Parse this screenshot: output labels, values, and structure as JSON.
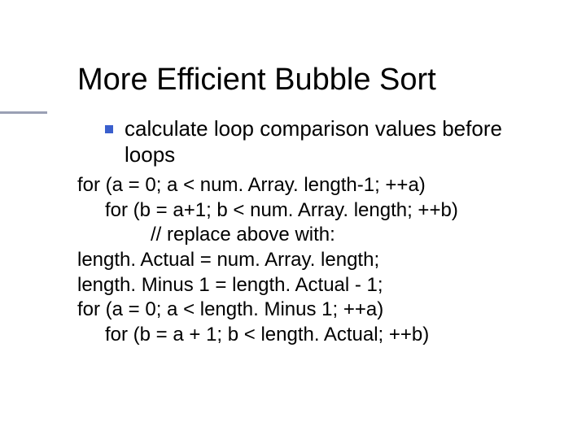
{
  "slide": {
    "title": "More Efficient Bubble Sort",
    "title_color": "#000000",
    "title_fontsize": 38,
    "rule_color": "#9aa0b4",
    "bullet_marker_color": "#3a5fcd",
    "bullet_text": "calculate loop comparison values before loops",
    "body_fontsize": 26,
    "code_fontsize": 24,
    "code_lines": [
      {
        "text": "for (a = 0; a < num. Array. length-1; ++a)",
        "indent": 0
      },
      {
        "text": "for (b = a+1; b < num. Array. length; ++b)",
        "indent": 1
      },
      {
        "text": "// replace above with:",
        "indent": 2
      },
      {
        "text": "length. Actual = num. Array. length;",
        "indent": 0
      },
      {
        "text": "length. Minus 1 = length. Actual - 1;",
        "indent": 0
      },
      {
        "text": "for (a = 0; a < length. Minus 1; ++a)",
        "indent": 0
      },
      {
        "text": "for (b = a + 1; b < length. Actual; ++b)",
        "indent": 1
      }
    ],
    "background_color": "#ffffff",
    "text_color": "#000000"
  }
}
